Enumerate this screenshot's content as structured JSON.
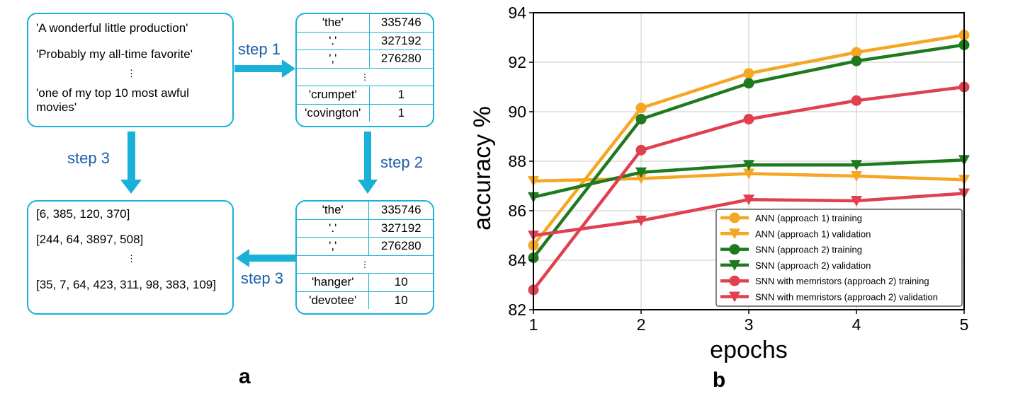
{
  "panel_a": {
    "label": "a",
    "input_box": {
      "line1": "'A wonderful little production'",
      "line2": "'Probably my all-time favorite'",
      "ellipsis": "⋮",
      "line3": "'one of my top 10 most awful movies'"
    },
    "vocab_table_1": {
      "rows": [
        {
          "word": "'the'",
          "count": "335746"
        },
        {
          "word": "'.'",
          "count": "327192"
        },
        {
          "word": "','",
          "count": "276280"
        },
        {
          "word": "⋮",
          "count": ""
        },
        {
          "word": "'crumpet'",
          "count": "1"
        },
        {
          "word": "'covington'",
          "count": "1"
        }
      ]
    },
    "vocab_table_2": {
      "rows": [
        {
          "word": "'the'",
          "count": "335746"
        },
        {
          "word": "'.'",
          "count": "327192"
        },
        {
          "word": "','",
          "count": "276280"
        },
        {
          "word": "⋮",
          "count": ""
        },
        {
          "word": "'hanger'",
          "count": "10"
        },
        {
          "word": "'devotee'",
          "count": "10"
        }
      ]
    },
    "output_box": {
      "line1": "[6, 385, 120, 370]",
      "line2": "[244, 64, 3897, 508]",
      "ellipsis": "⋮",
      "line3": "[35, 7, 64, 423, 311, 98, 383, 109]"
    },
    "steps": {
      "step1": "step 1",
      "step2": "step 2",
      "step3_left": "step 3",
      "step3_bottom": "step 3"
    },
    "arrow_color": "#1ab1d8",
    "step_text_color": "#1a5ea8"
  },
  "chart_data": {
    "type": "line",
    "panel_label": "b",
    "title": "",
    "xlabel": "epochs",
    "ylabel": "accuracy %",
    "x": [
      1,
      2,
      3,
      4,
      5
    ],
    "xlim": [
      1,
      5
    ],
    "ylim": [
      82,
      94
    ],
    "xticks": [
      1,
      2,
      3,
      4,
      5
    ],
    "yticks": [
      82,
      84,
      86,
      88,
      90,
      92,
      94
    ],
    "grid": true,
    "legend_position": "lower-right",
    "series": [
      {
        "name": "ANN (approach 1) training",
        "values": [
          84.6,
          90.15,
          91.55,
          92.4,
          93.1
        ],
        "color": "#f5a623",
        "marker": "circle"
      },
      {
        "name": "ANN (approach 1) validation",
        "values": [
          87.2,
          87.3,
          87.5,
          87.4,
          87.25
        ],
        "color": "#f5a623",
        "marker": "triangle-down"
      },
      {
        "name": "SNN (approach 2) training",
        "values": [
          84.1,
          89.7,
          91.15,
          92.05,
          92.7
        ],
        "color": "#1f7a1f",
        "marker": "circle"
      },
      {
        "name": "SNN (approach 2) validation",
        "values": [
          86.55,
          87.55,
          87.85,
          87.85,
          88.05
        ],
        "color": "#1f7a1f",
        "marker": "triangle-down"
      },
      {
        "name": "SNN with memristors (approach 2) training",
        "values": [
          82.8,
          88.45,
          89.7,
          90.45,
          91.0
        ],
        "color": "#e0404f",
        "marker": "circle"
      },
      {
        "name": "SNN with memristors (approach 2) validation",
        "values": [
          85.0,
          85.6,
          86.45,
          86.4,
          86.7
        ],
        "color": "#e0404f",
        "marker": "triangle-down"
      }
    ]
  }
}
